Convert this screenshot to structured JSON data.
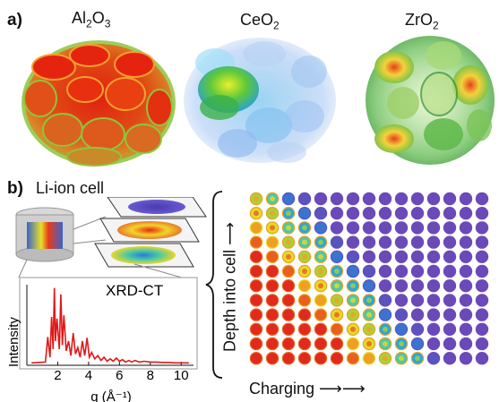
{
  "panel_a": {
    "letter": "a)",
    "materials": [
      {
        "base": "Al",
        "sub1": "2",
        "mid": "O",
        "sub2": "3"
      },
      {
        "base": "CeO",
        "sub1": "2",
        "mid": "",
        "sub2": ""
      },
      {
        "base": "ZrO",
        "sub1": "2",
        "mid": "",
        "sub2": ""
      }
    ]
  },
  "panel_b": {
    "letter": "b)",
    "title": "Li-ion cell",
    "depth_label": "Depth into cell",
    "charging_label": "Charging",
    "grid": {
      "rows": 13,
      "cols": 16
    }
  },
  "chart_data": {
    "type": "line",
    "title": "XRD-CT",
    "xlabel": "q (Å⁻¹)",
    "ylabel": "Intensity",
    "xlim": [
      0.0,
      10.8
    ],
    "ylim": [
      0,
      1
    ],
    "xticks": [
      "2",
      "4",
      "6",
      "8",
      "10"
    ],
    "x": [
      0.3,
      1.2,
      1.35,
      1.5,
      1.6,
      1.7,
      1.78,
      1.85,
      1.95,
      2.1,
      2.2,
      2.3,
      2.4,
      2.55,
      2.7,
      2.85,
      3.0,
      3.15,
      3.3,
      3.45,
      3.6,
      3.75,
      3.9,
      4.05,
      4.2,
      4.4,
      4.6,
      4.8,
      5.0,
      5.2,
      5.4,
      5.6,
      5.8,
      6.0,
      6.2,
      6.4,
      6.6,
      6.8,
      7.0,
      7.3,
      7.6,
      8.0,
      8.4,
      8.8,
      9.2,
      9.6,
      10.0,
      10.5
    ],
    "values": [
      0.03,
      0.04,
      0.35,
      0.1,
      0.6,
      0.2,
      0.96,
      0.3,
      0.58,
      0.2,
      0.88,
      0.25,
      0.62,
      0.18,
      0.3,
      0.12,
      0.4,
      0.14,
      0.22,
      0.1,
      0.3,
      0.12,
      0.34,
      0.1,
      0.16,
      0.08,
      0.12,
      0.06,
      0.1,
      0.05,
      0.08,
      0.05,
      0.09,
      0.05,
      0.07,
      0.04,
      0.06,
      0.04,
      0.06,
      0.04,
      0.05,
      0.04,
      0.04,
      0.035,
      0.035,
      0.03,
      0.03,
      0.03
    ],
    "grid": false
  }
}
